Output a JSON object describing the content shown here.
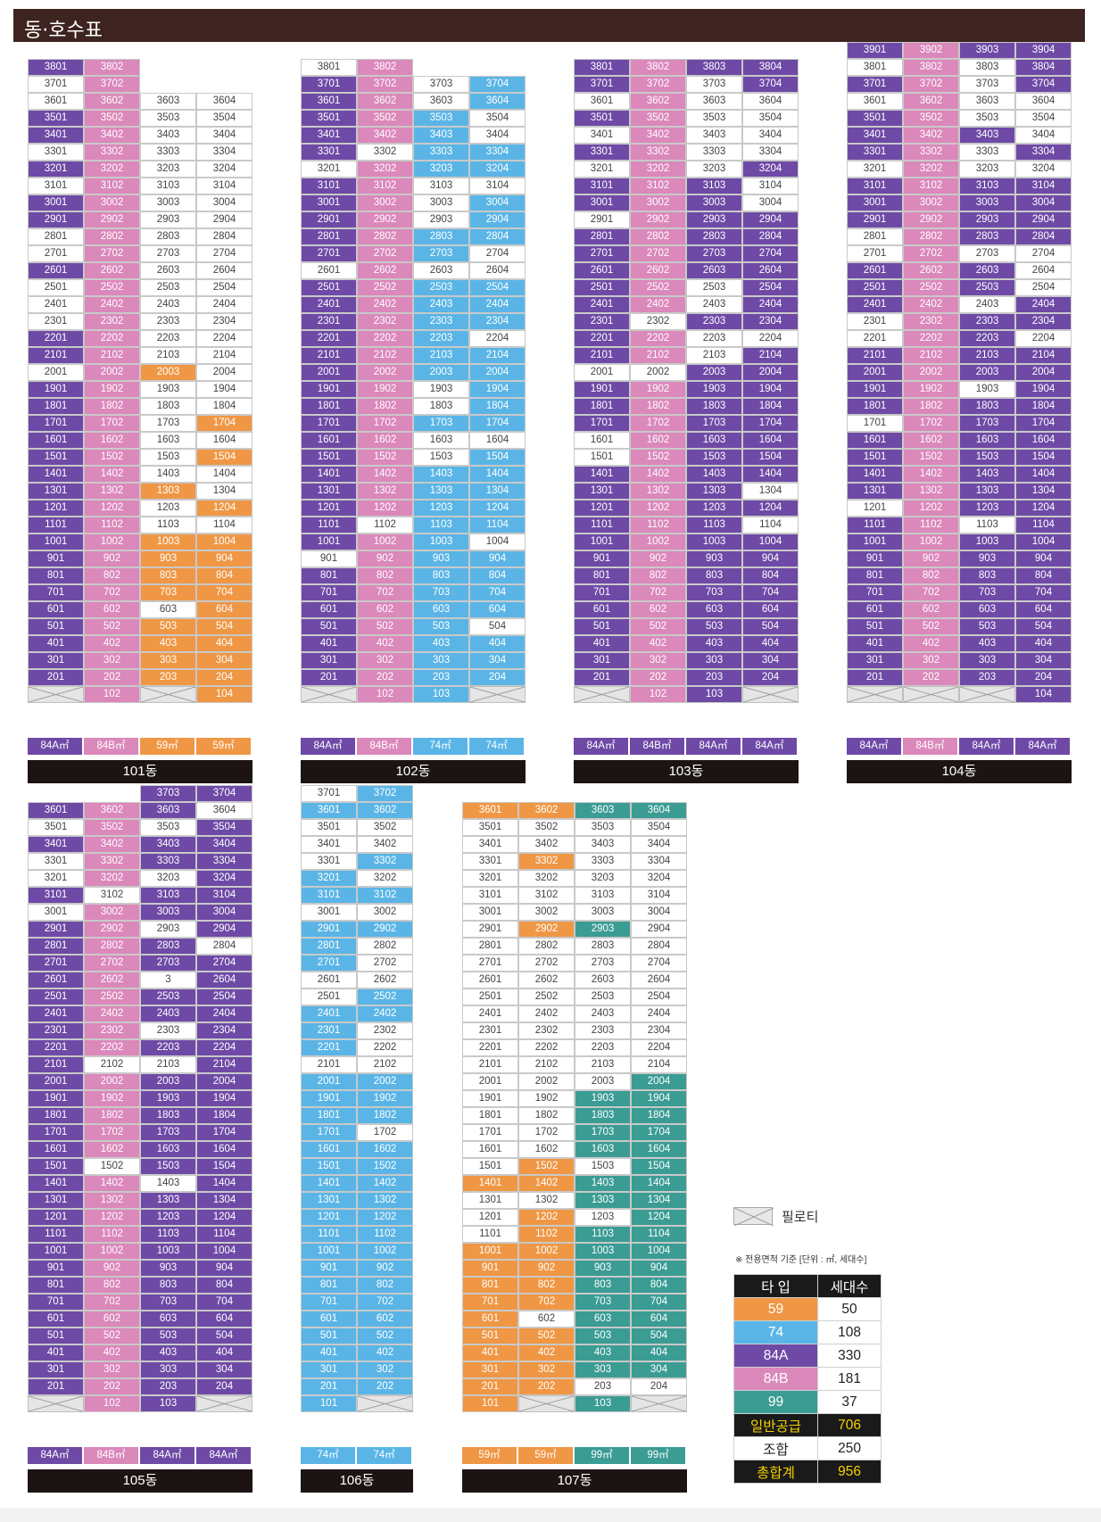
{
  "page_title": "동·호수표",
  "colors": {
    "59": "#ef9745",
    "74": "#5ab5e6",
    "84A": "#6e4aa6",
    "84B": "#db88bb",
    "99": "#3b9c94",
    "white": "#ffffff",
    "pilotis": "#e5e5e5"
  },
  "legend": {
    "pilotis_label": "필로티",
    "note": "※ 전용면적 기준 [단위 : ㎡, 세대수]"
  },
  "summary": {
    "headers": [
      "타 입",
      "세대수"
    ],
    "rows": [
      {
        "type": "59",
        "count": "50",
        "bg": "#ef9745",
        "fg": "#ffffff"
      },
      {
        "type": "74",
        "count": "108",
        "bg": "#5ab5e6",
        "fg": "#ffffff"
      },
      {
        "type": "84A",
        "count": "330",
        "bg": "#6e4aa6",
        "fg": "#ffffff"
      },
      {
        "type": "84B",
        "count": "181",
        "bg": "#db88bb",
        "fg": "#ffffff"
      },
      {
        "type": "99",
        "count": "37",
        "bg": "#3b9c94",
        "fg": "#ffffff"
      },
      {
        "type": "일반공급",
        "count": "706",
        "bg": "#1a1a1a",
        "fg": "#f5d000"
      },
      {
        "type": "조합",
        "count": "250",
        "bg": "#ffffff",
        "fg": "#222222"
      },
      {
        "type": "총합계",
        "count": "956",
        "bg": "#1a1a1a",
        "fg": "#f5d000"
      }
    ]
  },
  "buildings": [
    {
      "name": "101동",
      "top_floor": 38,
      "footer": [
        "84A㎡",
        "84B㎡",
        "59㎡",
        "59㎡"
      ],
      "footer_colors": [
        "84A",
        "84B",
        "59",
        "59"
      ],
      "cols": [
        "38:P,37:W,36:W,35:P,34:P,33:W,32:P,31:W,30:P,29:P,28:W,27:W,26:P,25:W,24:W,23:W,22:P,21:P,20:W,19:P,18:P,17:P,16:P,15:P,14:P,13:P,12:P,11:P,10:P,9:P,8:P,7:P,6:P,5:P,4:P,3:P,2:P,1:X",
        "38:K,37:K,36:K,35:K,34:K,33:K,32:K,31:K,30:K,29:K,28:K,27:K,26:K,25:K,24:K,23:K,22:K,21:K,20:K,19:K,18:K,17:K,16:K,15:K,14:K,13:K,12:K,11:K,10:K,9:K,8:K,7:K,6:K,5:K,4:K,3:K,2:K,1:K",
        "36:W,35:W,34:W,33:W,32:W,31:W,30:W,29:W,28:W,27:W,26:W,25:W,24:W,23:W,22:W,21:W,20:O,19:W,18:W,17:W,16:W,15:W,14:W,13:O,12:W,11:W,10:O,9:O,8:O,7:O,6:W,5:O,4:O,3:O,2:O,1:X",
        "36:W,35:W,34:W,33:W,32:W,31:W,30:W,29:W,28:W,27:W,26:W,25:W,24:W,23:W,22:W,21:W,20:W,19:W,18:W,17:O,16:W,15:O,14:W,13:W,12:O,11:W,10:O,9:O,8:O,7:O,6:O,5:O,4:O,3:O,2:O,1:O"
      ]
    },
    {
      "name": "102동",
      "top_floor": 38,
      "footer": [
        "84A㎡",
        "84B㎡",
        "74㎡",
        "74㎡"
      ],
      "footer_colors": [
        "84A",
        "84B",
        "74",
        "74"
      ],
      "cols": [
        "38:W,37:P,36:P,35:P,34:P,33:P,32:W,31:P,30:P,29:P,28:P,27:P,26:W,25:P,24:P,23:P,22:P,21:P,20:P,19:P,18:P,17:P,16:P,15:P,14:P,13:P,12:P,11:P,10:P,9:W,8:P,7:P,6:P,5:P,4:P,3:P,2:P,1:X",
        "38:K,37:K,36:K,35:K,34:K,33:W,32:K,31:K,30:K,29:K,28:K,27:K,26:K,25:K,24:K,23:K,22:K,21:K,20:K,19:K,18:K,17:K,16:K,15:K,14:K,13:K,12:K,11:W,10:K,9:K,8:K,7:K,6:K,5:K,4:K,3:K,2:K,1:K",
        "37:W,36:W,35:B,34:B,33:B,32:B,31:W,30:W,29:W,28:B,27:B,26:W,25:B,24:B,23:B,22:B,21:B,20:B,19:W,18:W,17:B,16:W,15:W,14:B,13:B,12:B,11:B,10:B,9:B,8:B,7:B,6:B,5:B,4:B,3:B,2:B,1:B",
        "37:B,36:B,35:W,34:W,33:B,32:B,31:W,30:B,29:B,28:B,27:W,26:W,25:B,24:B,23:B,22:W,21:B,20:B,19:B,18:B,17:B,16:W,15:B,14:B,13:B,12:B,11:B,10:W,9:B,8:B,7:B,6:B,5:W,4:B,3:B,2:B,1:X"
      ]
    },
    {
      "name": "103동",
      "top_floor": 38,
      "footer": [
        "84A㎡",
        "84B㎡",
        "84A㎡",
        "84A㎡"
      ],
      "footer_colors": [
        "84A",
        "84A",
        "84A",
        "84A"
      ],
      "cols": [
        "38:P,37:P,36:W,35:P,34:W,33:P,32:W,31:P,30:P,29:W,28:P,27:P,26:P,25:P,24:P,23:P,22:P,21:P,20:W,19:P,18:P,17:P,16:W,15:W,14:P,13:P,12:P,11:P,10:P,9:P,8:P,7:P,6:P,5:P,4:P,3:P,2:P,1:X",
        "38:K,37:K,36:K,35:K,34:K,33:K,32:K,31:K,30:K,29:K,28:K,27:K,26:K,25:K,24:K,23:W,22:K,21:K,20:W,19:K,18:K,17:K,16:K,15:K,14:K,13:K,12:K,11:K,10:K,9:K,8:K,7:K,6:K,5:K,4:K,3:K,2:K,1:K",
        "38:P,37:W,36:W,35:W,34:W,33:W,32:W,31:P,30:P,29:P,28:P,27:P,26:P,25:W,24:W,23:P,22:W,21:W,20:P,19:P,18:P,17:P,16:P,15:P,14:P,13:P,12:P,11:P,10:P,9:P,8:P,7:P,6:P,5:P,4:P,3:P,2:P,1:P",
        "38:P,37:P,36:W,35:W,34:W,33:W,32:P,31:W,30:W,29:P,28:P,27:P,26:P,25:P,24:P,23:P,22:W,21:P,20:P,19:P,18:P,17:P,16:P,15:P,14:P,13:W,12:P,11:W,10:P,9:P,8:P,7:P,6:P,5:P,4:P,3:P,2:P,1:X"
      ]
    },
    {
      "name": "104동",
      "top_floor": 39,
      "footer": [
        "84A㎡",
        "84B㎡",
        "84A㎡",
        "84A㎡"
      ],
      "footer_colors": [
        "84A",
        "84B",
        "84A",
        "84A"
      ],
      "cols": [
        "39:P,38:W,37:P,36:W,35:P,34:P,33:P,32:W,31:P,30:P,29:P,28:W,27:W,26:P,25:P,24:P,23:W,22:W,21:P,20:P,19:P,18:P,17:W,16:P,15:P,14:P,13:P,12:W,11:P,10:P,9:P,8:P,7:P,6:P,5:P,4:P,3:P,2:P,1:X",
        "39:K,38:K,37:K,36:K,35:K,34:K,33:K,32:K,31:K,30:K,29:K,28:K,27:K,26:K,25:K,24:K,23:K,22:K,21:K,20:K,19:K,18:K,17:K,16:K,15:K,14:K,13:K,12:K,11:K,10:K,9:K,8:K,7:K,6:K,5:K,4:K,3:K,2:K,1:X",
        "39:P,38:W,37:W,36:W,35:W,34:P,33:W,32:W,31:P,30:P,29:P,28:P,27:W,26:P,25:P,24:W,23:P,22:P,21:P,20:P,19:W,18:P,17:P,16:P,15:P,14:P,13:P,12:P,11:W,10:P,9:P,8:P,7:P,6:P,5:P,4:P,3:P,2:P,1:X",
        "39:P,38:P,37:P,36:W,35:W,34:W,33:P,32:W,31:P,30:P,29:P,28:P,27:W,26:W,25:W,24:P,23:P,22:W,21:P,20:P,19:P,18:P,17:P,16:P,15:P,14:P,13:P,12:P,11:P,10:P,9:P,8:P,7:P,6:P,5:P,4:P,3:P,2:P,1:P"
      ]
    },
    {
      "name": "105동",
      "top_floor": 37,
      "footer": [
        "84A㎡",
        "84B㎡",
        "84A㎡",
        "84A㎡"
      ],
      "footer_colors": [
        "84A",
        "84B",
        "84A",
        "84A"
      ],
      "cols": [
        "36:P,35:W,34:P,33:W,32:W,31:P,30:W,29:P,28:P,27:P,26:P,25:P,24:P,23:P,22:P,21:P,20:P,19:P,18:P,17:P,16:P,15:P,14:P,13:P,12:P,11:P,10:P,9:P,8:P,7:P,6:P,5:P,4:P,3:P,2:P,1:X",
        "36:K,35:K,34:K,33:K,32:K,31:W,30:K,29:K,28:K,27:K,26:K,25:K,24:K,23:K,22:K,21:W,20:K,19:K,18:K,17:K,16:K,15:W,14:K,13:K,12:K,11:K,10:K,9:K,8:K,7:K,6:K,5:K,4:K,3:K,2:K,1:K",
        "37:P,36:P,35:W,34:P,33:P,32:W,31:P,30:P,29:W,28:P,27:P,26:W,25:P,24:P,23:W,22:P,21:W,20:P,19:P,18:P,17:P,16:P,15:P,14:W,13:P,12:P,11:P,10:P,9:P,8:P,7:P,6:P,5:P,4:P,3:P,2:P,1:P",
        "37:P,36:W,35:P,34:P,33:P,32:P,31:P,30:P,29:P,28:W,27:P,26:P,25:P,24:P,23:P,22:P,21:P,20:P,19:P,18:P,17:P,16:P,15:P,14:P,13:P,12:P,11:P,10:P,9:P,8:P,7:P,6:P,5:P,4:P,3:P,2:P,1:X"
      ]
    },
    {
      "name": "106동",
      "top_floor": 37,
      "footer": [
        "74㎡",
        "74㎡"
      ],
      "footer_colors": [
        "74",
        "74"
      ],
      "cols": [
        "37:W,36:B,35:W,34:W,33:W,32:B,31:B,30:W,29:B,28:B,27:B,26:W,25:W,24:B,23:B,22:B,21:W,20:B,19:B,18:B,17:B,16:B,15:B,14:B,13:B,12:B,11:B,10:B,9:B,8:B,7:B,6:B,5:B,4:B,3:B,2:B,1:B",
        "37:B,36:B,35:W,34:W,33:B,32:W,31:B,30:W,29:B,28:W,27:W,26:W,25:B,24:B,23:W,22:W,21:W,20:B,19:B,18:B,17:W,16:B,15:B,14:B,13:B,12:B,11:B,10:B,9:B,8:B,7:B,6:B,5:B,4:B,3:B,2:B,1:X"
      ]
    },
    {
      "name": "107동",
      "top_floor": 37,
      "footer": [
        "59㎡",
        "59㎡",
        "99㎡",
        "99㎡"
      ],
      "footer_colors": [
        "59",
        "59",
        "99",
        "99"
      ],
      "cols": [
        "36:O,35:W,34:W,33:W,32:W,31:W,30:W,29:W,28:W,27:W,26:W,25:W,24:W,23:W,22:W,21:W,20:W,19:W,18:W,17:W,16:W,15:W,14:O,13:W,12:W,11:W,10:O,9:O,8:O,7:O,6:O,5:O,4:O,3:O,2:O,1:O",
        "36:O,35:W,34:W,33:O,32:W,31:W,30:W,29:O,28:W,27:W,26:W,25:W,24:W,23:W,22:W,21:W,20:W,19:W,18:W,17:W,16:W,15:O,14:O,13:W,12:O,11:O,10:O,9:O,8:O,7:O,6:W,5:O,4:O,3:O,2:O,1:X",
        "36:G,35:W,34:W,33:W,32:W,31:W,30:W,29:G,28:W,27:W,26:W,25:W,24:W,23:W,22:W,21:W,20:W,19:G,18:G,17:G,16:G,15:W,14:G,13:G,12:W,11:G,10:G,9:G,8:G,7:G,6:G,5:G,4:G,3:G,2:W,1:G",
        "36:G,35:W,34:W,33:W,32:W,31:W,30:W,29:W,28:W,27:W,26:W,25:W,24:W,23:W,22:W,21:W,20:G,19:G,18:G,17:G,16:G,15:G,14:G,13:G,12:G,11:G,10:G,9:G,8:G,7:G,6:G,5:G,4:G,3:G,2:W,1:X"
      ]
    }
  ],
  "overrides": {
    "105동-2603": "3"
  }
}
